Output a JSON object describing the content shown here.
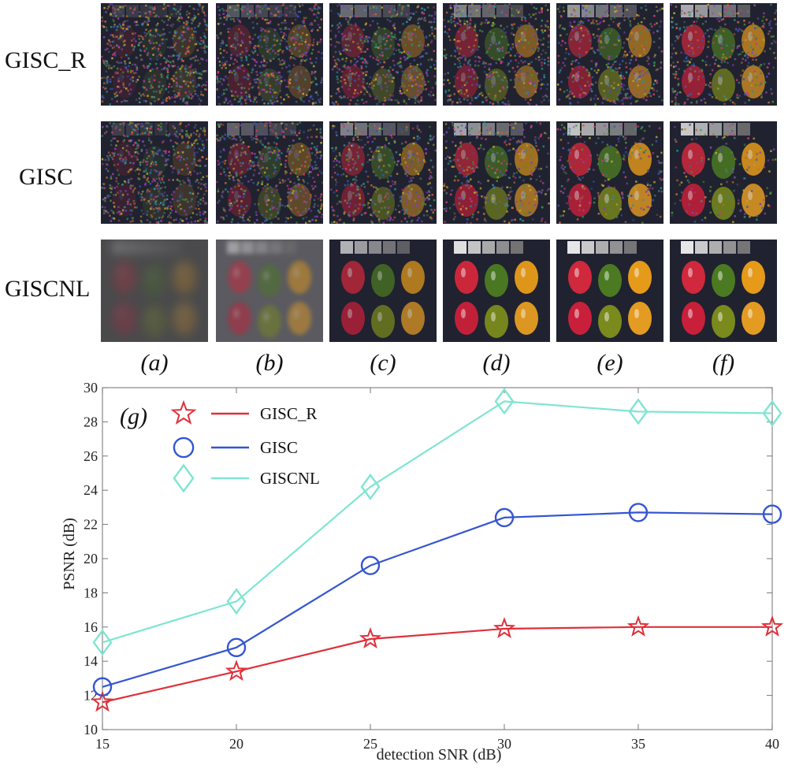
{
  "image_grid": {
    "rows": [
      {
        "label": "GISC_R",
        "quality": "noisy"
      },
      {
        "label": "GISC",
        "quality": "medium"
      },
      {
        "label": "GISCNL",
        "quality": "clean"
      }
    ],
    "columns": [
      "(a)",
      "(b)",
      "(c)",
      "(d)",
      "(e)",
      "(f)"
    ]
  },
  "chart_data": {
    "type": "line",
    "panel_label": "(g)",
    "title": "",
    "xlabel": "detection SNR (dB)",
    "ylabel": "PSNR (dB)",
    "x": [
      15,
      20,
      25,
      30,
      35,
      40
    ],
    "xlim": [
      15,
      40
    ],
    "ylim": [
      10,
      30
    ],
    "xticks": [
      15,
      20,
      25,
      30,
      35,
      40
    ],
    "yticks": [
      10,
      12,
      14,
      16,
      18,
      20,
      22,
      24,
      26,
      28,
      30
    ],
    "legend_position": "top-left",
    "series": [
      {
        "name": "GISC_R",
        "values": [
          11.6,
          13.4,
          15.3,
          15.9,
          16.0,
          16.0
        ],
        "color": "#e0303a",
        "marker": "star"
      },
      {
        "name": "GISC",
        "values": [
          12.5,
          14.8,
          19.6,
          22.4,
          22.7,
          22.6
        ],
        "color": "#3455d1",
        "marker": "circle"
      },
      {
        "name": "GISCNL",
        "values": [
          15.1,
          17.5,
          24.2,
          29.2,
          28.6,
          28.5
        ],
        "color": "#7fe5d2",
        "marker": "diamond"
      }
    ]
  }
}
